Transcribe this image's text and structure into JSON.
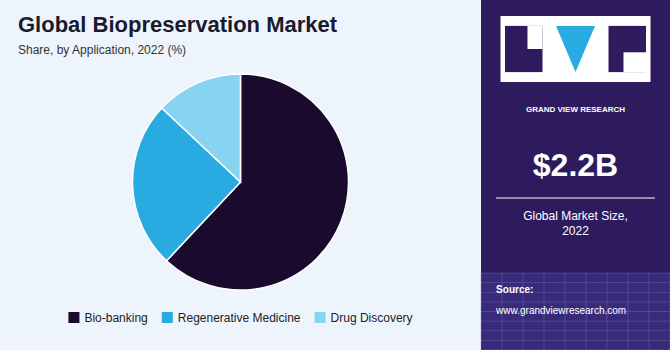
{
  "chart_data": {
    "type": "pie",
    "title": "Global Biopreservation Market",
    "subtitle": "Share, by Application, 2022 (%)",
    "categories": [
      "Bio-banking",
      "Regenerative Medicine",
      "Drug Discovery"
    ],
    "values": [
      62,
      25,
      13
    ],
    "colors": [
      "#1a0a2e",
      "#29abe2",
      "#87d4f0"
    ],
    "legend": "bottom",
    "annotations": [
      "GRAND VIEW RESEARCH",
      "$2.2B",
      "Global Market Size,\n2022",
      "Source:",
      "www.grandviewresearch.com"
    ]
  }
}
